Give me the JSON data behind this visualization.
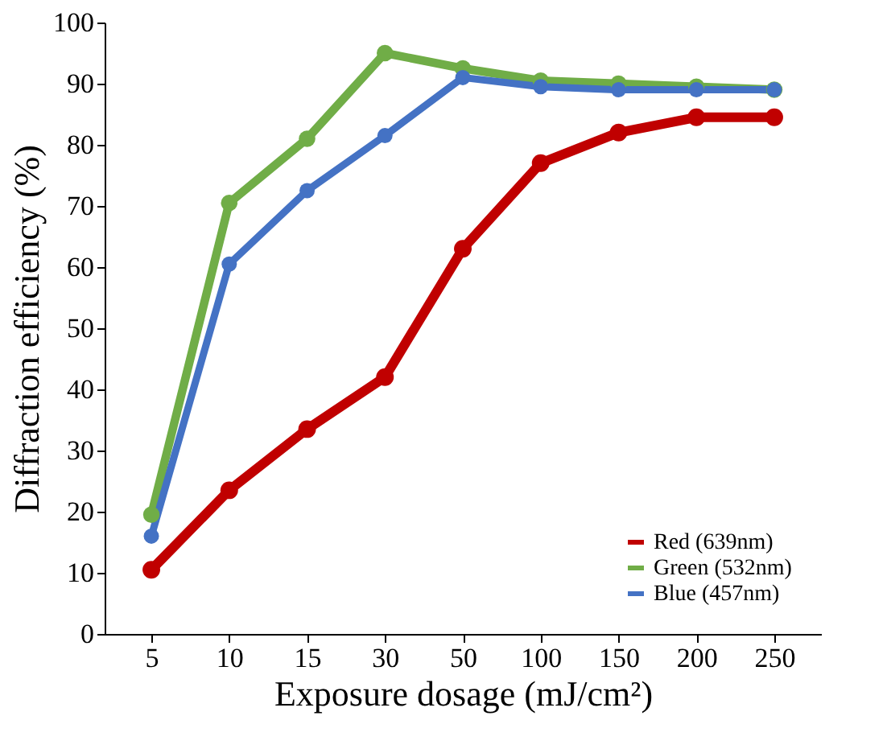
{
  "chart_data": {
    "type": "line",
    "xlabel": "Exposure dosage (mJ/cm²)",
    "ylabel": "Diffraction efficiency (%)",
    "categories": [
      "5",
      "10",
      "15",
      "30",
      "50",
      "100",
      "150",
      "200",
      "250"
    ],
    "ylim": [
      0,
      100
    ],
    "yticks": [
      0,
      10,
      20,
      30,
      40,
      50,
      60,
      70,
      80,
      90,
      100
    ],
    "grid": false,
    "legend": "bottom right",
    "marker": "circle",
    "line_style": "solid",
    "series": [
      {
        "name": "Red (639nm)",
        "color": "#c00000",
        "values": [
          10.5,
          23.5,
          33.5,
          42,
          63,
          77,
          82,
          84.5,
          84.5
        ]
      },
      {
        "name": "Green (532nm)",
        "color": "#70ad47",
        "values": [
          19.5,
          70.5,
          81,
          95,
          92.5,
          90.5,
          90,
          89.5,
          89
        ]
      },
      {
        "name": "Blue (457nm)",
        "color": "#4472c4",
        "values": [
          16,
          60.5,
          72.5,
          81.5,
          91,
          89.5,
          89,
          89,
          89
        ]
      }
    ]
  }
}
